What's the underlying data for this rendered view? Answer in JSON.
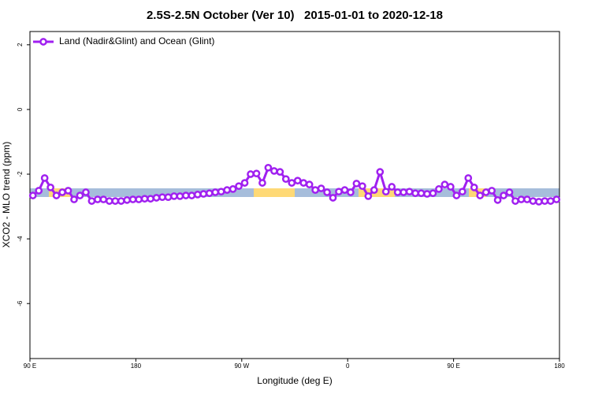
{
  "chart_data": {
    "type": "line",
    "title": "2.5S-2.5N October (Ver 10)   2015-01-01 to 2020-12-18",
    "xlabel": "Longitude (deg E)",
    "ylabel": "XCO2 - MLO trend (ppm)",
    "x": [
      92.5,
      97.5,
      102.5,
      107.5,
      112.5,
      117.5,
      122.5,
      127.5,
      132.5,
      137.5,
      142.5,
      147.5,
      152.5,
      157.5,
      162.5,
      167.5,
      172.5,
      177.5,
      182.5,
      187.5,
      192.5,
      197.5,
      202.5,
      207.5,
      212.5,
      217.5,
      222.5,
      227.5,
      232.5,
      237.5,
      242.5,
      247.5,
      252.5,
      257.5,
      262.5,
      267.5,
      272.5,
      277.5,
      282.5,
      287.5,
      292.5,
      297.5,
      302.5,
      307.5,
      312.5,
      317.5,
      322.5,
      327.5,
      332.5,
      337.5,
      342.5,
      347.5,
      352.5,
      357.5,
      362.5,
      367.5,
      372.5,
      377.5,
      382.5,
      387.5,
      392.5,
      397.5,
      402.5,
      407.5,
      412.5,
      417.5,
      422.5,
      427.5,
      432.5,
      437.5,
      442.5,
      447.5,
      452.5,
      457.5,
      462.5,
      467.5,
      472.5,
      477.5,
      482.5,
      487.5,
      492.5,
      497.5,
      502.5,
      507.5,
      512.5,
      517.5,
      522.5,
      527.5,
      532.5,
      537.5
    ],
    "series": [
      {
        "name": "Land (Nadir&Glint) and Ocean (Glint)",
        "color": "#a020f0",
        "values": [
          -2.66,
          -2.51,
          -2.12,
          -2.41,
          -2.66,
          -2.56,
          -2.51,
          -2.78,
          -2.66,
          -2.56,
          -2.83,
          -2.78,
          -2.78,
          -2.83,
          -2.83,
          -2.83,
          -2.8,
          -2.78,
          -2.78,
          -2.76,
          -2.76,
          -2.73,
          -2.71,
          -2.71,
          -2.68,
          -2.68,
          -2.66,
          -2.66,
          -2.63,
          -2.61,
          -2.59,
          -2.56,
          -2.54,
          -2.49,
          -2.46,
          -2.37,
          -2.27,
          -2.0,
          -1.98,
          -2.27,
          -1.8,
          -1.9,
          -1.93,
          -2.15,
          -2.27,
          -2.2,
          -2.27,
          -2.32,
          -2.49,
          -2.44,
          -2.56,
          -2.73,
          -2.54,
          -2.49,
          -2.56,
          -2.29,
          -2.37,
          -2.68,
          -2.49,
          -1.93,
          -2.54,
          -2.39,
          -2.56,
          -2.56,
          -2.54,
          -2.59,
          -2.59,
          -2.61,
          -2.59,
          -2.46,
          -2.32,
          -2.39,
          -2.66,
          -2.54,
          -2.12,
          -2.41,
          -2.66,
          -2.56,
          -2.51,
          -2.8,
          -2.66,
          -2.56,
          -2.83,
          -2.78,
          -2.78,
          -2.83,
          -2.85,
          -2.83,
          -2.83,
          -2.78
        ]
      }
    ],
    "xlim": [
      90,
      540
    ],
    "xticks": [
      {
        "value": 90,
        "label": "90 E"
      },
      180,
      {
        "value": 270,
        "label": "90 W"
      },
      {
        "value": 360,
        "label": "0"
      },
      {
        "value": 450,
        "label": "90 E"
      },
      {
        "value": 540,
        "label": "180"
      }
    ],
    "ylim": [
      -7.7,
      2.41
    ],
    "yticks": [
      2,
      0,
      -2,
      -4,
      -6
    ],
    "legend": "top-left"
  }
}
